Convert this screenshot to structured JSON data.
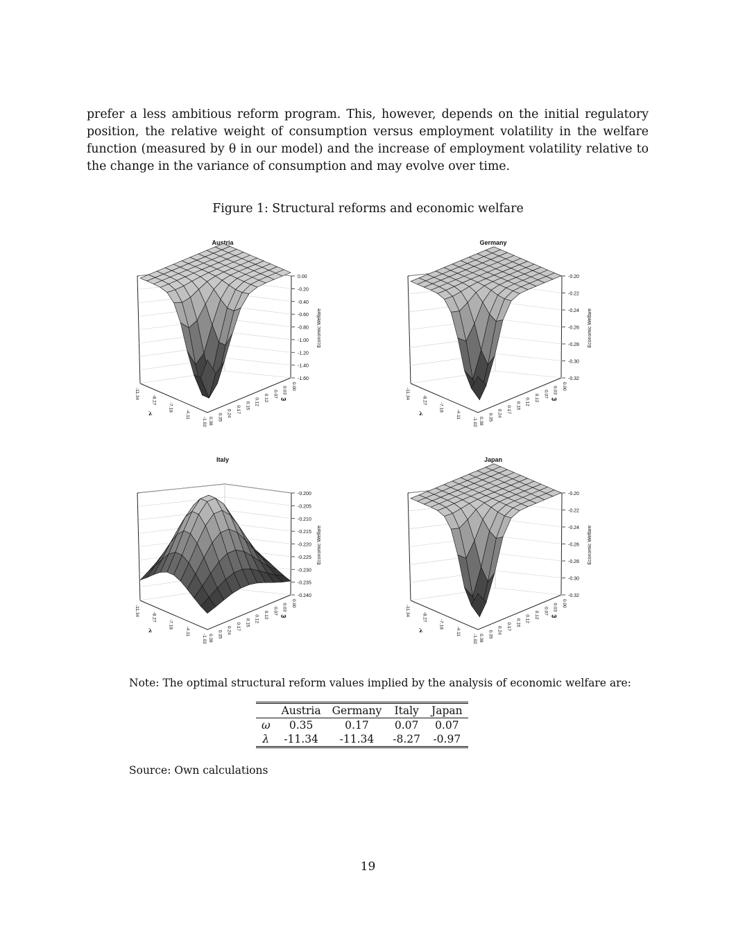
{
  "paragraph": {
    "lines": [
      "prefer a less ambitious reform program.  This, however, depends on the initial regulatory",
      "position, the relative weight of consumption versus employment volatility in the welfare",
      "function (measured by θ in our model) and the increase of employment volatility relative to",
      "the change in the variance of consumption and may evolve over time."
    ]
  },
  "figure": {
    "caption": "Figure 1: Structural reforms and economic welfare",
    "zlabel": "Economic Welfare",
    "lambda_symbol": "λ",
    "omega_symbol": "ω",
    "panels": [
      {
        "title": "Austria",
        "z_ticks": [
          "0.00",
          "-0.20",
          "-0.40",
          "-0.60",
          "-0.80",
          "-1.00",
          "-1.20",
          "-1.40",
          "-1.60"
        ],
        "lambda_ticks": [
          "-11.34",
          "-8.27",
          "-7.18",
          "-4.11",
          "-1.02"
        ],
        "omega_ticks": [
          "0.38",
          "0.35",
          "0.24",
          "0.17",
          "0.15",
          "0.12",
          "0.12",
          "0.07",
          "0.03",
          "0.00"
        ],
        "fill": "#7a7a7a",
        "shape": "deep"
      },
      {
        "title": "Germany",
        "z_ticks": [
          "-0.20",
          "-0.22",
          "-0.24",
          "-0.26",
          "-0.28",
          "-0.30",
          "-0.32"
        ],
        "lambda_ticks": [
          "-11.34",
          "-8.27",
          "-7.18",
          "-4.11",
          "-1.02"
        ],
        "omega_ticks": [
          "0.38",
          "0.35",
          "0.24",
          "0.17",
          "0.15",
          "0.12",
          "0.12",
          "0.07",
          "0.03",
          "0.00"
        ],
        "fill": "#6e6e6e",
        "shape": "narrow"
      },
      {
        "title": "Italy",
        "z_ticks": [
          "-0.200",
          "-0.205",
          "-0.210",
          "-0.215",
          "-0.220",
          "-0.225",
          "-0.230",
          "-0.235",
          "-0.240"
        ],
        "lambda_ticks": [
          "-11.34",
          "-8.27",
          "-7.18",
          "-4.11",
          "-1.02"
        ],
        "omega_ticks": [
          "0.38",
          "0.35",
          "0.24",
          "0.17",
          "0.15",
          "0.12",
          "0.12",
          "0.07",
          "0.03",
          "0.00"
        ],
        "fill": "#808080",
        "shape": "dome"
      },
      {
        "title": "Japan",
        "z_ticks": [
          "-0.20",
          "-0.22",
          "-0.24",
          "-0.26",
          "-0.28",
          "-0.30",
          "-0.32"
        ],
        "lambda_ticks": [
          "-11.34",
          "-8.27",
          "-7.18",
          "-4.11",
          "-1.02"
        ],
        "omega_ticks": [
          "0.38",
          "0.35",
          "0.24",
          "0.17",
          "0.15",
          "0.12",
          "0.12",
          "0.07",
          "0.03",
          "0.00"
        ],
        "fill": "#6e6e6e",
        "shape": "narrow"
      }
    ]
  },
  "note": "Note: The optimal structural reform values implied by the analysis of economic welfare are:",
  "table": {
    "headers": [
      "",
      "Austria",
      "Germany",
      "Italy",
      "Japan"
    ],
    "rows": [
      [
        "ω",
        "0.35",
        "0.17",
        "0.07",
        "0.07"
      ],
      [
        "λ",
        "-11.34",
        "-11.34",
        "-8.27",
        "-0.97"
      ]
    ]
  },
  "source": "Source: Own calculations",
  "page_number": "19"
}
